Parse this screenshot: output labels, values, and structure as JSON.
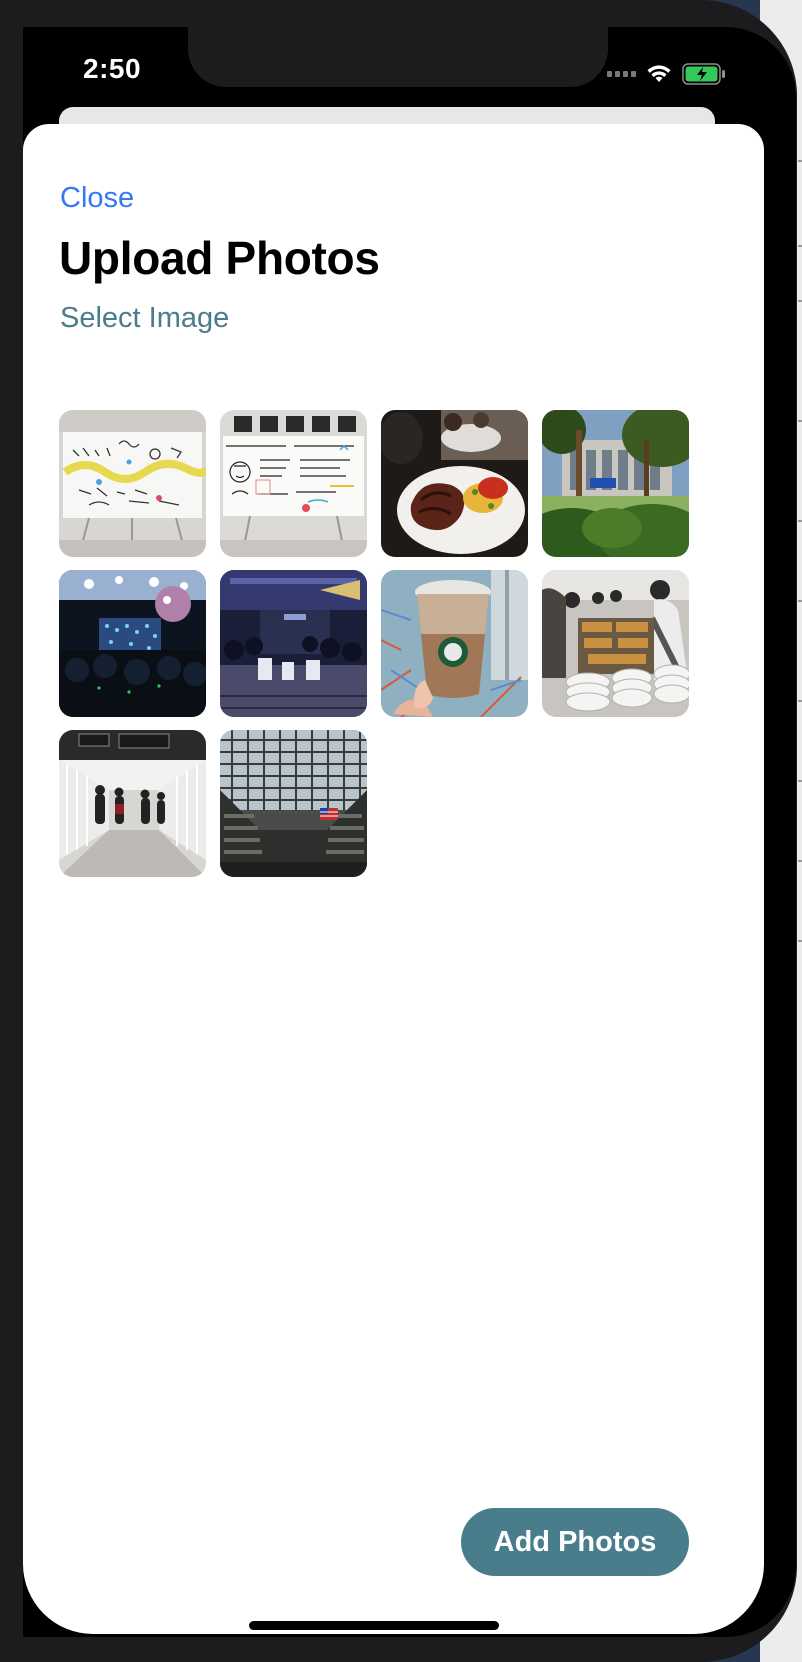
{
  "status_bar": {
    "time": "2:50"
  },
  "modal": {
    "close_label": "Close",
    "title": "Upload Photos",
    "select_label": "Select Image",
    "photos": [
      {
        "subject": "whiteboard-drawing"
      },
      {
        "subject": "whiteboard-sketches"
      },
      {
        "subject": "plated-meal"
      },
      {
        "subject": "building-plaza"
      },
      {
        "subject": "concert-stage"
      },
      {
        "subject": "ballroom-event"
      },
      {
        "subject": "iced-coffee"
      },
      {
        "subject": "buffet-line"
      },
      {
        "subject": "walkway-bridge"
      },
      {
        "subject": "atrium-skylight"
      }
    ],
    "add_button_label": "Add Photos"
  },
  "colors": {
    "accent": "#3478f6",
    "teal": "#4a7d8c"
  }
}
